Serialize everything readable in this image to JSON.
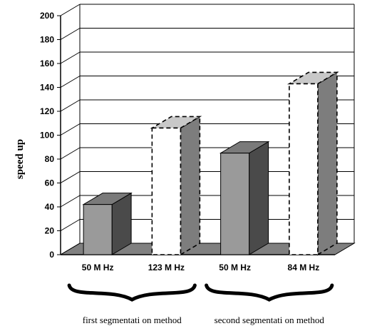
{
  "chart_data": {
    "type": "bar",
    "ylabel": "speed up",
    "ylim": [
      0,
      200
    ],
    "yticks": [
      0,
      20,
      40,
      60,
      80,
      100,
      120,
      140,
      160,
      180,
      200
    ],
    "grid": true,
    "three_d": true,
    "categories": [
      "50 M Hz",
      "123 M Hz",
      "50 M Hz",
      "84 M Hz"
    ],
    "values": [
      42,
      106,
      85,
      143
    ],
    "bar_styles": [
      "solid-gray",
      "dashed-white",
      "solid-gray",
      "dashed-white"
    ],
    "groups": [
      {
        "label": "first  segmentati   on   method",
        "categories": [
          0,
          1
        ]
      },
      {
        "label": "second   segmentati   on   method",
        "categories": [
          2,
          3
        ]
      }
    ]
  },
  "colors": {
    "bar_front": "#9a9a9a",
    "bar_top": "#7a7a7a",
    "bar_side": "#4a4a4a",
    "white_front": "#ffffff",
    "white_top": "#c8c8c8",
    "white_side": "#7d7d7d",
    "floor": "#808080",
    "grid": "#000000"
  }
}
